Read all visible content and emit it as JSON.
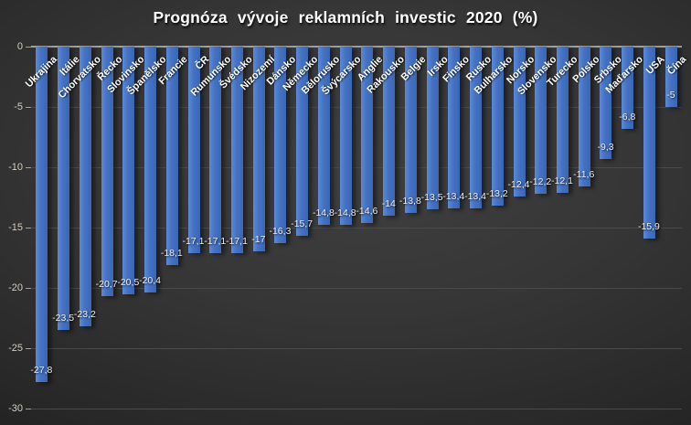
{
  "chart_data": {
    "type": "bar",
    "title": "Prognóza vývoje reklamních investic 2020 (%)",
    "categories": [
      "Ukrajina",
      "Itálie",
      "Chorvatsko",
      "Řecko",
      "Slovinsko",
      "Španělsko",
      "Francie",
      "ČR",
      "Rumunsko",
      "Švédsko",
      "Nizozemí",
      "Dánsko",
      "Německo",
      "Bělorusko",
      "Švýcarsko",
      "Anglie",
      "Rakousko",
      "Belgie",
      "Irsko",
      "Finsko",
      "Rusko",
      "Bulharsko",
      "Norsko",
      "Slovensko",
      "Turecko",
      "Polsko",
      "Srbsko",
      "Maďarsko",
      "USA",
      "Čína"
    ],
    "values": [
      -27.8,
      -23.5,
      -23.2,
      -20.7,
      -20.5,
      -20.4,
      -18.1,
      -17.1,
      -17.1,
      -17.1,
      -17,
      -16.3,
      -15.7,
      -14.8,
      -14.8,
      -14.6,
      -14,
      -13.8,
      -13.5,
      -13.4,
      -13.4,
      -13.2,
      -12.4,
      -12.2,
      -12.1,
      -11.6,
      -9.3,
      -6.8,
      -15.9,
      -5
    ],
    "value_labels": [
      "-27,8",
      "-23,5",
      "-23,2",
      "-20,7",
      "-20,5",
      "-20,4",
      "-18,1",
      "-17,1",
      "-17,1",
      "-17,1",
      "-17",
      "-16,3",
      "-15,7",
      "-14,8",
      "-14,8",
      "-14,6",
      "-14",
      "-13,8",
      "-13,5",
      "-13,4",
      "-13,4",
      "-13,2",
      "-12,4",
      "-12,2",
      "-12,1",
      "-11,6",
      "-9,3",
      "-6,8",
      "-15,9",
      "-5"
    ],
    "xlabel": "",
    "ylabel": "",
    "ylim": [
      -30,
      0
    ],
    "yticks": [
      0,
      -5,
      -10,
      -15,
      -20,
      -25,
      -30
    ],
    "ytick_labels": [
      "0",
      "-5",
      "-10",
      "-15",
      "-20",
      "-25",
      "-30"
    ],
    "grid": "horizontal",
    "legend": "none",
    "colors": {
      "bar": "#4472c4",
      "bar_light": "#5d8ad8",
      "bar_dark": "#3b66b2",
      "background_light": "#404040",
      "background_edge": "#272727",
      "axis_line": "#a0a0a0",
      "gridline": "#4a4a4a",
      "tick_label": "#d5ccbd",
      "value_label": "#ececec",
      "category_label": "#ffffff",
      "title": "#ffffff"
    }
  }
}
